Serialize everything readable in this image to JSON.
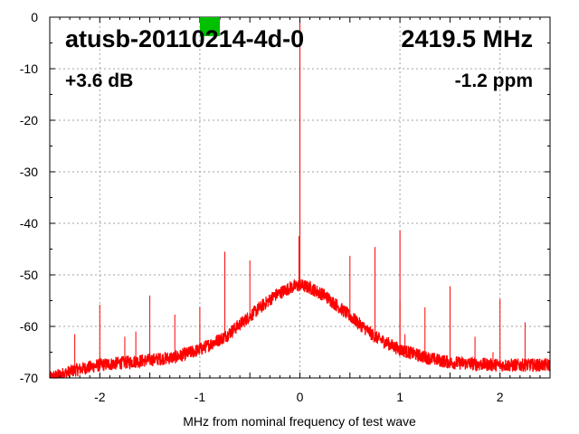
{
  "chart_data": {
    "type": "line",
    "title": "atusb-20110214-4d-0",
    "annotations": {
      "frequency": "2419.5 MHz",
      "gain": "+3.6 dB",
      "offset": "-1.2 ppm"
    },
    "xlabel": "MHz from nominal frequency of test wave",
    "ylabel": "",
    "xlim": [
      -2.5,
      2.5
    ],
    "ylim": [
      -70,
      0
    ],
    "xticks": [
      -2,
      -1,
      0,
      1,
      2
    ],
    "xtick_labels": [
      "-2",
      "-1",
      "0",
      "1",
      "2"
    ],
    "yticks": [
      0,
      -10,
      -20,
      -30,
      -40,
      -50,
      -60,
      -70
    ],
    "ytick_labels": [
      "0",
      "-10",
      "-20",
      "-30",
      "-40",
      "-50",
      "-60",
      "-70"
    ],
    "grid": true,
    "series_color": "#ff0000",
    "status_indicator_color": "#00c000",
    "noise_floor": {
      "x": [
        -2.5,
        -2.25,
        -2.0,
        -1.75,
        -1.5,
        -1.25,
        -1.0,
        -0.75,
        -0.5,
        -0.25,
        -0.1,
        0.0,
        0.1,
        0.25,
        0.5,
        0.75,
        1.0,
        1.25,
        1.5,
        1.75,
        2.0,
        2.25,
        2.5
      ],
      "y": [
        -70,
        -68.5,
        -67.5,
        -67,
        -66.5,
        -66,
        -64.5,
        -62,
        -58,
        -54,
        -52.5,
        -52,
        -52.5,
        -54,
        -58,
        -62,
        -64.5,
        -66,
        -67,
        -67.3,
        -67.5,
        -67.5,
        -67.5
      ]
    },
    "spurs": {
      "x": [
        -2.25,
        -2.0,
        -1.75,
        -1.64,
        -1.5,
        -1.25,
        -1.0,
        -0.75,
        -0.5,
        -0.01,
        0.0,
        0.5,
        0.75,
        1.0,
        1.0,
        1.05,
        1.25,
        1.5,
        1.75,
        1.93,
        2.0,
        2.25
      ],
      "y": [
        -61.5,
        -55.8,
        -62,
        -61,
        -54,
        -57.7,
        -56.2,
        -45.5,
        -47.2,
        -42.5,
        0,
        -46.3,
        -44.6,
        -41.4,
        -55,
        -61.5,
        -56.3,
        -52.2,
        -62,
        -65,
        -54.7,
        -59.2
      ]
    }
  }
}
